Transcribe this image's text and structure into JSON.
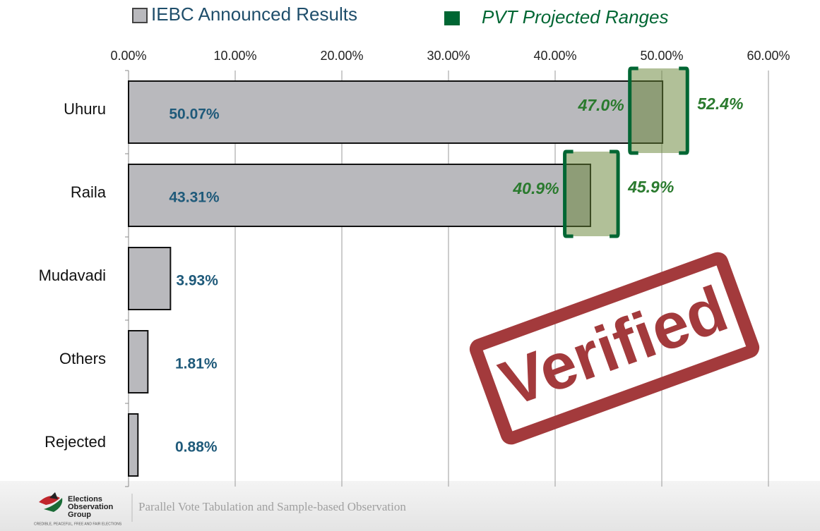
{
  "chart_data": {
    "type": "bar_range",
    "categories": [
      "Uhuru",
      "Raila",
      "Mudavadi",
      "Others",
      "Rejected"
    ],
    "series": [
      {
        "name": "IEBC Announced Results",
        "color": "#b9b9bd",
        "values": [
          50.07,
          43.31,
          3.93,
          1.81,
          0.88
        ],
        "value_labels": [
          "50.07%",
          "43.31%",
          "3.93%",
          "1.81%",
          "0.88%"
        ]
      }
    ],
    "ranges": {
      "name": "PVT Projected Ranges",
      "color": "#006633",
      "low": [
        47.0,
        40.9,
        null,
        null,
        null
      ],
      "high": [
        52.4,
        45.9,
        null,
        null,
        null
      ],
      "low_labels": [
        "47.0%",
        "40.9%",
        null,
        null,
        null
      ],
      "high_labels": [
        "52.4%",
        "45.9%",
        null,
        null,
        null
      ]
    },
    "xlim": [
      0,
      60
    ],
    "xticks": [
      {
        "value": 0,
        "label": "0.00%"
      },
      {
        "value": 10,
        "label": "10.00%"
      },
      {
        "value": 20,
        "label": "20.00%"
      },
      {
        "value": 30,
        "label": "30.00%"
      },
      {
        "value": 40,
        "label": "40.00%"
      },
      {
        "value": 50,
        "label": "50.00%"
      },
      {
        "value": 60,
        "label": "60.00%"
      }
    ],
    "grid": true,
    "stamp": "Verified",
    "footer": {
      "org_line1": "Elections",
      "org_line2": "Observation",
      "org_line3": "Group",
      "motto": "CREDIBLE, PEACEFUL, FREE AND FAIR ELECTIONS",
      "text": "Parallel Vote Tabulation and Sample-based Observation"
    }
  }
}
